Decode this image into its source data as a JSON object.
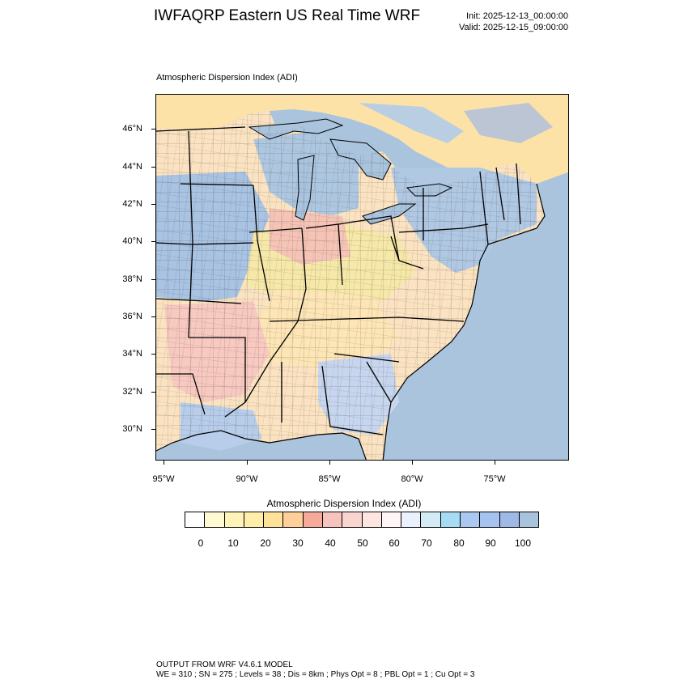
{
  "header": {
    "title": "IWFAQRP Eastern US Real Time WRF",
    "init": "Init: 2025-12-13_00:00:00",
    "valid": "Valid: 2025-12-15_09:00:00"
  },
  "map": {
    "subtitle": "Atmospheric Dispersion Index   (ADI)",
    "variable": "Atmospheric Dispersion Index",
    "water_color": "#aac4dd",
    "lat_labels": [
      "46°N",
      "44°N",
      "42°N",
      "40°N",
      "38°N",
      "36°N",
      "34°N",
      "32°N",
      "30°N"
    ],
    "lon_labels": [
      "95°W",
      "90°W",
      "85°W",
      "80°W",
      "75°W"
    ]
  },
  "colorbar": {
    "title": "Atmospheric Dispersion Index  (ADI)",
    "colors": [
      "#ffffff",
      "#fffad2",
      "#fff3b8",
      "#ffeeaa",
      "#ffe29a",
      "#ffcf9a",
      "#f6ab9a",
      "#f7c4bd",
      "#fad5cf",
      "#fde6e2",
      "#fff4f6",
      "#eaf0fc",
      "#d2ebf5",
      "#a6dcf3",
      "#a9c9f1",
      "#a6c2ee",
      "#9fb9e6",
      "#a8c4dd"
    ],
    "labels": [
      "0",
      "10",
      "20",
      "30",
      "40",
      "50",
      "60",
      "70",
      "80",
      "90",
      "100"
    ]
  },
  "footer": {
    "line1": "OUTPUT FROM WRF V4.6.1 MODEL",
    "line2": "WE = 310 ; SN = 275 ; Levels = 38 ; Dis = 8km ; Phys Opt = 8 ; PBL Opt = 1 ; Cu Opt = 3"
  }
}
